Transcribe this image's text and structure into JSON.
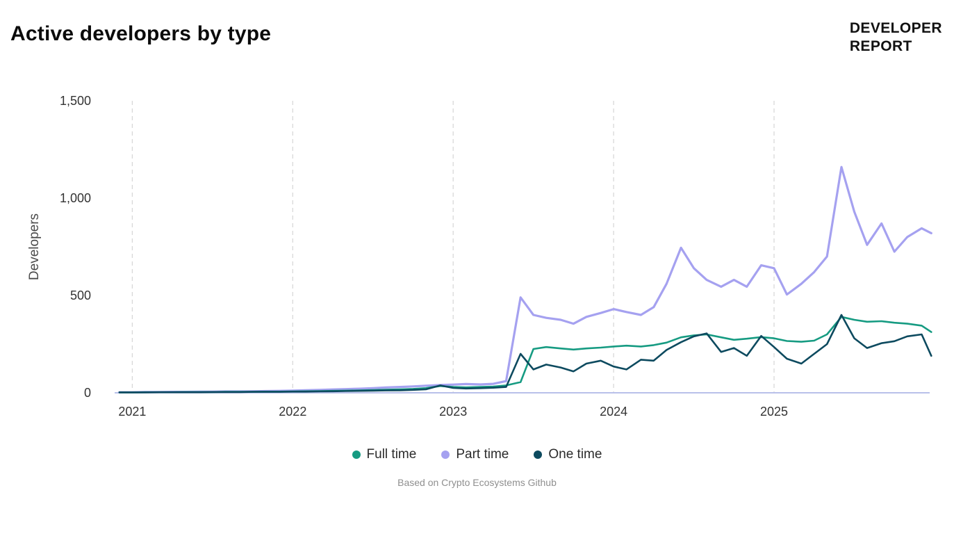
{
  "page": {
    "title": "Active developers by type",
    "logo_line1": "DEVELOPER",
    "logo_line2": "REPORT",
    "caption": "Based on Crypto Ecosystems Github"
  },
  "colors": {
    "full_time": "#169b82",
    "part_time": "#a5a1f0",
    "one_time": "#0d4a5f",
    "baseline": "#b9c0ea",
    "gridline": "#d8d8d8",
    "tick_text": "#333333",
    "axis_label_text": "#4a4a4a"
  },
  "chart_data": {
    "type": "line",
    "title": "Active developers by type",
    "xlabel": "",
    "ylabel": "Developers",
    "xlim": [
      2020.89,
      2025.97
    ],
    "ylim": [
      0,
      1500
    ],
    "grid": "vertical-dashed",
    "legend_position": "bottom",
    "xticks": [
      {
        "value": 2021,
        "label": "2021"
      },
      {
        "value": 2022,
        "label": "2022"
      },
      {
        "value": 2023,
        "label": "2023"
      },
      {
        "value": 2024,
        "label": "2024"
      },
      {
        "value": 2025,
        "label": "2025"
      }
    ],
    "yticks": [
      {
        "value": 0,
        "label": "0"
      },
      {
        "value": 500,
        "label": "500"
      },
      {
        "value": 1000,
        "label": "1,000"
      },
      {
        "value": 1500,
        "label": "1,500"
      }
    ],
    "x": [
      2020.92,
      2021.0,
      2021.08,
      2021.17,
      2021.25,
      2021.33,
      2021.42,
      2021.5,
      2021.58,
      2021.67,
      2021.75,
      2021.83,
      2021.92,
      2022.0,
      2022.08,
      2022.17,
      2022.25,
      2022.33,
      2022.42,
      2022.5,
      2022.58,
      2022.67,
      2022.75,
      2022.83,
      2022.92,
      2023.0,
      2023.08,
      2023.17,
      2023.25,
      2023.33,
      2023.42,
      2023.5,
      2023.58,
      2023.67,
      2023.75,
      2023.83,
      2023.92,
      2024.0,
      2024.08,
      2024.17,
      2024.25,
      2024.33,
      2024.42,
      2024.5,
      2024.58,
      2024.67,
      2024.75,
      2024.83,
      2024.92,
      2025.0,
      2025.08,
      2025.17,
      2025.25,
      2025.33,
      2025.42,
      2025.5,
      2025.58,
      2025.67,
      2025.75,
      2025.83,
      2025.92,
      2025.98
    ],
    "series": [
      {
        "name": "Full time",
        "color_key": "full_time",
        "stroke_width": 2.6,
        "values": [
          2,
          2,
          3,
          3,
          3,
          4,
          4,
          4,
          5,
          5,
          5,
          6,
          6,
          7,
          8,
          9,
          10,
          11,
          12,
          14,
          16,
          18,
          20,
          24,
          35,
          30,
          28,
          30,
          32,
          38,
          55,
          225,
          235,
          228,
          222,
          228,
          232,
          238,
          242,
          238,
          245,
          258,
          285,
          295,
          300,
          285,
          272,
          278,
          286,
          280,
          266,
          262,
          268,
          300,
          390,
          375,
          365,
          368,
          360,
          355,
          345,
          312
        ]
      },
      {
        "name": "Part time",
        "color_key": "part_time",
        "stroke_width": 3.2,
        "values": [
          3,
          3,
          4,
          4,
          5,
          5,
          6,
          6,
          7,
          7,
          8,
          9,
          10,
          11,
          13,
          15,
          17,
          19,
          21,
          24,
          27,
          30,
          33,
          36,
          40,
          42,
          45,
          43,
          46,
          60,
          490,
          400,
          385,
          375,
          355,
          390,
          410,
          430,
          415,
          400,
          440,
          560,
          745,
          640,
          580,
          545,
          580,
          545,
          655,
          640,
          505,
          560,
          620,
          700,
          1160,
          930,
          760,
          870,
          725,
          800,
          845,
          820
        ]
      },
      {
        "name": "One time",
        "color_key": "one_time",
        "stroke_width": 2.6,
        "values": [
          2,
          2,
          2,
          3,
          3,
          3,
          3,
          4,
          4,
          4,
          5,
          5,
          5,
          6,
          6,
          7,
          8,
          9,
          10,
          11,
          12,
          13,
          15,
          18,
          38,
          25,
          22,
          24,
          26,
          30,
          200,
          120,
          145,
          130,
          110,
          150,
          165,
          135,
          120,
          170,
          165,
          220,
          260,
          290,
          305,
          210,
          230,
          190,
          292,
          235,
          175,
          150,
          200,
          250,
          400,
          280,
          230,
          255,
          265,
          290,
          300,
          190
        ]
      }
    ]
  }
}
